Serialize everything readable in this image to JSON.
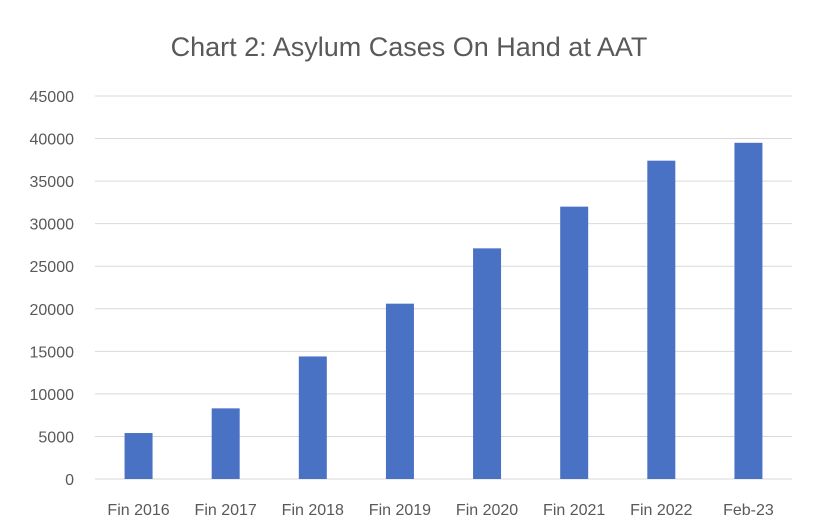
{
  "chart_data": {
    "type": "bar",
    "title": "Chart 2: Asylum Cases On Hand at AAT",
    "xlabel": "",
    "ylabel": "",
    "categories": [
      "Fin 2016",
      "Fin 2017",
      "Fin 2018",
      "Fin 2019",
      "Fin 2020",
      "Fin 2021",
      "Fin 2022",
      "Feb-23"
    ],
    "values": [
      5400,
      8300,
      14400,
      20600,
      27100,
      32000,
      37400,
      39500
    ],
    "ylim": [
      0,
      45000
    ],
    "yticks": [
      0,
      5000,
      10000,
      15000,
      20000,
      25000,
      30000,
      35000,
      40000,
      45000
    ],
    "grid": true,
    "legend": "none",
    "bar_color": "#4a72c4"
  }
}
